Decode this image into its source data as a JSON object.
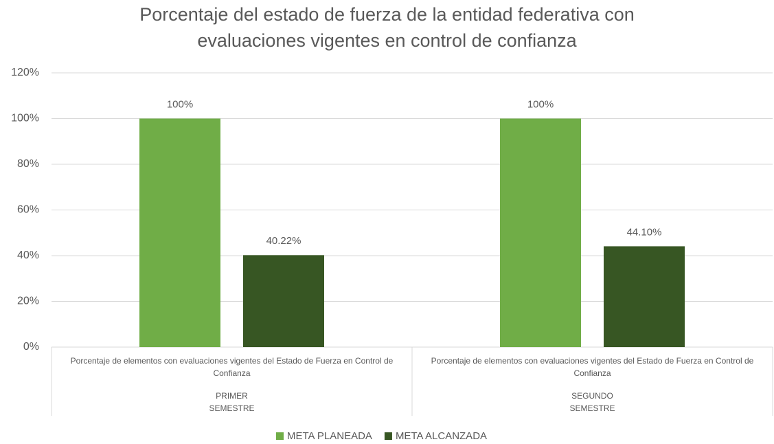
{
  "chart_data": {
    "type": "bar",
    "title": "Porcentaje del estado de fuerza de la entidad federativa con evaluaciones vigentes en control de confianza",
    "categories": [
      "Porcentaje de elementos con evaluaciones vigentes del Estado de Fuerza  en Control de Confianza",
      "Porcentaje de elementos con evaluaciones vigentes del Estado de Fuerza  en Control de Confianza"
    ],
    "groups": [
      "PRIMER\nSEMESTRE",
      "SEGUNDO\nSEMESTRE"
    ],
    "series": [
      {
        "name": "META PLANEADA",
        "color": "#70ad47",
        "values": [
          100,
          100
        ],
        "value_labels": [
          "100%",
          "100%"
        ]
      },
      {
        "name": "META ALCANZADA",
        "color": "#375623",
        "values": [
          40.22,
          44.1
        ],
        "value_labels": [
          "40.22%",
          "44.10%"
        ]
      }
    ],
    "ylim": [
      0,
      120
    ],
    "yticks": [
      {
        "value": 0,
        "label": "0%"
      },
      {
        "value": 20,
        "label": "20%"
      },
      {
        "value": 40,
        "label": "40%"
      },
      {
        "value": 60,
        "label": "60%"
      },
      {
        "value": 80,
        "label": "80%"
      },
      {
        "value": 100,
        "label": "100%"
      },
      {
        "value": 120,
        "label": "120%"
      }
    ],
    "grid": true,
    "legend": "bottom"
  }
}
